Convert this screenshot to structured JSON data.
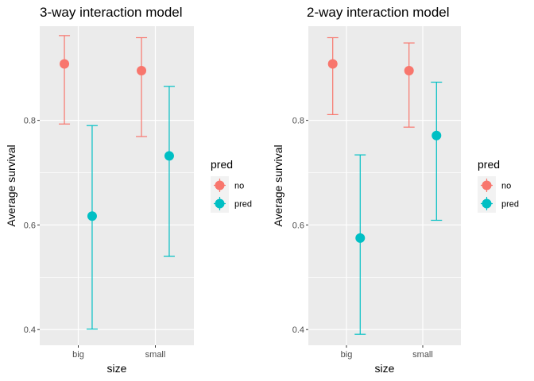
{
  "colors": {
    "no": "#F8766D",
    "pred": "#00BFC4",
    "panel": "#EBEBEB",
    "grid": "#FFFFFF",
    "tick": "#333333"
  },
  "chart_data": [
    {
      "type": "scatter",
      "title": "3-way interaction model",
      "xlabel": "size",
      "ylabel": "Average survival",
      "categories": [
        "big",
        "small"
      ],
      "ylim": [
        0.37,
        0.98
      ],
      "yticks": [
        0.4,
        0.6,
        0.8
      ],
      "ytick_labels": [
        "0.4",
        "0.6",
        "0.8"
      ],
      "grid": true,
      "legend": {
        "title": "pred",
        "position": "right",
        "entries": [
          "no",
          "pred"
        ]
      },
      "series": [
        {
          "name": "no",
          "values": [
            0.908,
            0.895
          ],
          "lower": [
            0.793,
            0.769
          ],
          "upper": [
            0.962,
            0.958
          ]
        },
        {
          "name": "pred",
          "values": [
            0.617,
            0.732
          ],
          "lower": [
            0.401,
            0.54
          ],
          "upper": [
            0.79,
            0.865
          ]
        }
      ]
    },
    {
      "type": "scatter",
      "title": "2-way interaction model",
      "xlabel": "size",
      "ylabel": "Average survival",
      "categories": [
        "big",
        "small"
      ],
      "ylim": [
        0.37,
        0.98
      ],
      "yticks": [
        0.4,
        0.6,
        0.8
      ],
      "ytick_labels": [
        "0.4",
        "0.6",
        "0.8"
      ],
      "grid": true,
      "legend": {
        "title": "pred",
        "position": "right",
        "entries": [
          "no",
          "pred"
        ]
      },
      "series": [
        {
          "name": "no",
          "values": [
            0.908,
            0.895
          ],
          "lower": [
            0.811,
            0.787
          ],
          "upper": [
            0.958,
            0.948
          ]
        },
        {
          "name": "pred",
          "values": [
            0.575,
            0.771
          ],
          "lower": [
            0.391,
            0.609
          ],
          "upper": [
            0.734,
            0.873
          ]
        }
      ]
    }
  ]
}
